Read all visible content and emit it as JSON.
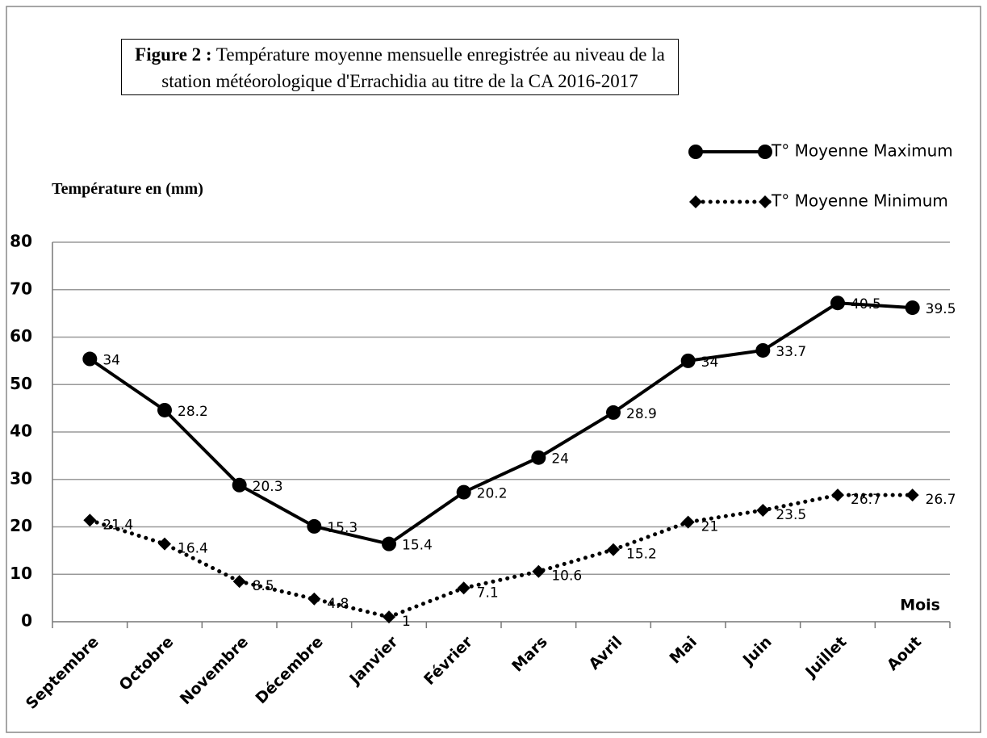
{
  "chart_data": {
    "type": "line",
    "stacked": true,
    "figure_label": "Figure 2 :",
    "title": "Température moyenne mensuelle enregistrée  au niveau de la station météorologique  d'Errachidia au titre de la CA 2016-2017",
    "ylabel": "Température en (mm)",
    "xlabel": "Mois",
    "categories": [
      "Septembre",
      "Octobre",
      "Novembre",
      "Décembre",
      "Janvier",
      "Février",
      "Mars",
      "Avril",
      "Mai",
      "Juin",
      "Juillet",
      "Aout"
    ],
    "series": [
      {
        "name": "T° Moyenne Minimum",
        "color": "#000000",
        "marker": "diamond",
        "dash": "dotted",
        "values": [
          21.4,
          16.4,
          8.5,
          4.8,
          1,
          7.1,
          10.6,
          15.2,
          21,
          23.5,
          26.7,
          26.7
        ]
      },
      {
        "name": "T° Moyenne Maximum",
        "color": "#000000",
        "marker": "circle",
        "dash": "solid",
        "values": [
          34,
          28.2,
          20.3,
          15.3,
          15.4,
          20.2,
          24,
          28.9,
          34,
          33.7,
          40.5,
          39.5
        ]
      }
    ],
    "ylim": [
      0,
      80
    ],
    "yticks": [
      0,
      10,
      20,
      30,
      40,
      50,
      60,
      70,
      80
    ],
    "grid": true,
    "legend": "top-right"
  }
}
